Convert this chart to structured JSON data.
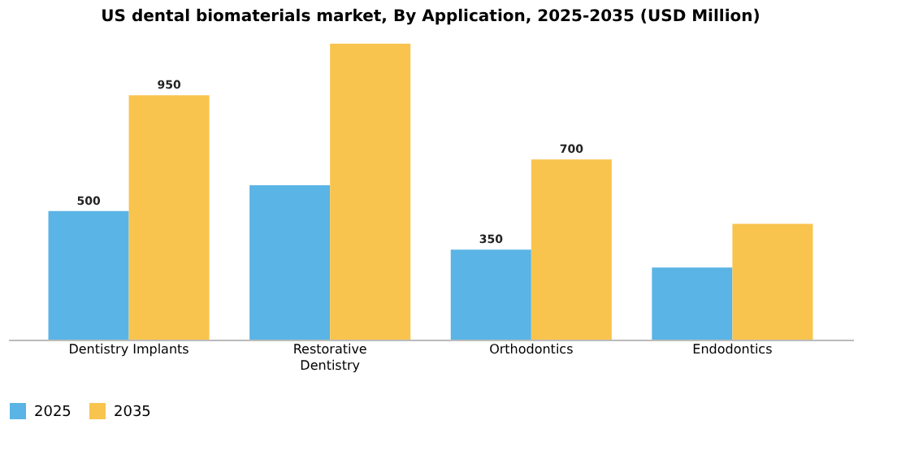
{
  "chart_data": {
    "type": "bar",
    "title": "US dental biomaterials market, By Application, 2025-2035 (USD Million)",
    "categories": [
      "Dentistry Implants",
      "Restorative Dentistry",
      "Orthodontics",
      "Endodontics"
    ],
    "series": [
      {
        "name": "2025",
        "color": "#5ab4e5",
        "values": [
          500,
          600,
          350,
          280
        ],
        "value_labels": [
          "500",
          null,
          "350",
          null
        ]
      },
      {
        "name": "2035",
        "color": "#f9c44d",
        "values": [
          950,
          1150,
          700,
          450
        ],
        "value_labels": [
          "950",
          null,
          "700",
          null
        ]
      }
    ],
    "legend": "bottom",
    "grid": false
  }
}
